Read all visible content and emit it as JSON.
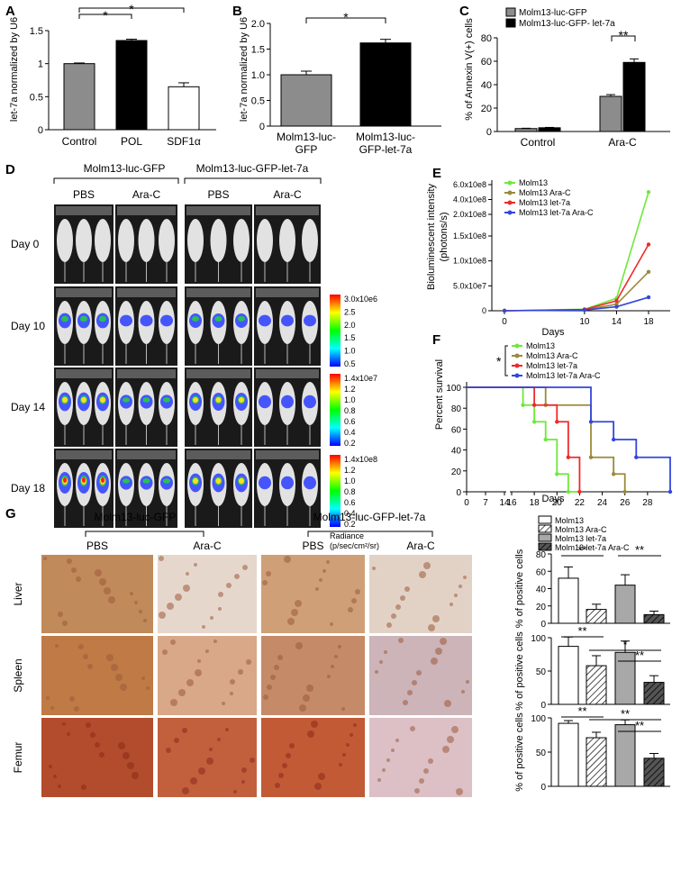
{
  "panels": {
    "A": {
      "label": "A",
      "ylabel": "let-7a normalized by U6",
      "yticks": [
        "0",
        "0.5",
        "1",
        "1.5"
      ],
      "chart_data": {
        "type": "bar",
        "categories": [
          "Control",
          "POL",
          "SDF1α"
        ],
        "values": [
          1.0,
          1.35,
          0.65
        ],
        "errors": [
          0.01,
          0.02,
          0.06
        ],
        "colors": [
          "#8c8c8c",
          "#000000",
          "#ffffff"
        ],
        "ylim": [
          0,
          1.5
        ],
        "significance": [
          "*",
          "*"
        ]
      }
    },
    "B": {
      "label": "B",
      "ylabel": "let-7a normalized by U6",
      "yticks": [
        "0",
        "0.5",
        "1.0",
        "1.5",
        "2.0"
      ],
      "xlabels": [
        [
          "Molm13-luc-",
          "GFP"
        ],
        [
          "Molm13-luc-",
          "GFP-let-7a"
        ]
      ],
      "chart_data": {
        "type": "bar",
        "categories": [
          "Molm13-luc-GFP",
          "Molm13-luc-GFP-let-7a"
        ],
        "values": [
          1.0,
          1.62
        ],
        "errors": [
          0.07,
          0.07
        ],
        "colors": [
          "#8c8c8c",
          "#000000"
        ],
        "ylim": [
          0,
          2.0
        ],
        "significance": [
          "*"
        ]
      }
    },
    "C": {
      "label": "C",
      "ylabel": "% of Annexin V(+) cells",
      "yticks": [
        "0",
        "20",
        "40",
        "60",
        "80"
      ],
      "legend": [
        "Molm13-luc-GFP",
        "Molm13-luc-GFP- let-7a"
      ],
      "chart_data": {
        "type": "bar",
        "categories": [
          "Control",
          "Ara-C"
        ],
        "series": [
          {
            "name": "Molm13-luc-GFP",
            "values": [
              2.5,
              30
            ],
            "errors": [
              0.3,
              1.5
            ],
            "color": "#8c8c8c"
          },
          {
            "name": "Molm13-luc-GFP- let-7a",
            "values": [
              3.2,
              59
            ],
            "errors": [
              0.3,
              3
            ],
            "color": "#000000"
          }
        ],
        "ylim": [
          0,
          80
        ],
        "significance": [
          "**"
        ]
      }
    },
    "D": {
      "label": "D",
      "group1": "Molm13-luc-GFP",
      "group2": "Molm13-luc-GFP-let-7a",
      "cols": [
        "PBS",
        "Ara-C",
        "PBS",
        "Ara-C"
      ],
      "days": [
        "Day 0",
        "Day 10",
        "Day 14",
        "Day 18"
      ],
      "scales": [
        {
          "top": "3.0x10e6",
          "ticks": [
            "2.5",
            "2.0",
            "1.5",
            "1.0",
            "0.5"
          ]
        },
        {
          "top": "1.4x10e7",
          "ticks": [
            "1.2",
            "1.0",
            "0.8",
            "0.6",
            "0.4",
            "0.2"
          ]
        },
        {
          "top": "1.4x10e8",
          "ticks": [
            "1.2",
            "1.0",
            "0.8",
            "0.6",
            "0.4",
            "0.2"
          ]
        }
      ],
      "radiance_label": "Radiance",
      "radiance_unit": "(p/sec/cm²/sr)"
    },
    "E": {
      "label": "E",
      "ylabel": "Bioluminescent intensity",
      "ylabel2": "(photons/s)",
      "xlabel": "Days",
      "yticks": [
        "0",
        "5.0x10e7",
        "1.0x10e8",
        "1.5x10e8",
        "2.0x10e8",
        "4.0x10e8",
        "6.0x10e8"
      ],
      "xticks": [
        "0",
        "10",
        "14",
        "18"
      ],
      "chart_data": {
        "type": "line",
        "x": [
          0,
          10,
          14,
          18
        ],
        "series": [
          {
            "name": "Molm13",
            "values": [
              0,
              3000000.0,
              25000000.0,
              500000000.0
            ],
            "color": "#6ee83a"
          },
          {
            "name": "Molm13 Ara-C",
            "values": [
              0,
              2000000.0,
              13000000.0,
              78000000.0
            ],
            "color": "#9a8a3a"
          },
          {
            "name": "Molm13 let-7a",
            "values": [
              0,
              2500000.0,
              20000000.0,
              133000000.0
            ],
            "color": "#ee2a2a"
          },
          {
            "name": "Molm13 let-7a Ara-C",
            "values": [
              0,
              1500000.0,
              8000000.0,
              27000000.0
            ],
            "color": "#3346dd"
          }
        ]
      }
    },
    "F": {
      "label": "F",
      "ylabel": "Percent survival",
      "xlabel": "Days",
      "xticks": [
        "0",
        "7",
        "14",
        "16",
        "18",
        "20",
        "22",
        "24",
        "26",
        "28"
      ],
      "yticks": [
        "0",
        "20",
        "40",
        "60",
        "80",
        "100"
      ],
      "significance": "*",
      "chart_data": {
        "type": "line",
        "series": [
          {
            "name": "Molm13",
            "color": "#6ee83a",
            "steps": [
              [
                0,
                100
              ],
              [
                17,
                100
              ],
              [
                17,
                83
              ],
              [
                18,
                83
              ],
              [
                18,
                67
              ],
              [
                19,
                67
              ],
              [
                19,
                50
              ],
              [
                20,
                50
              ],
              [
                20,
                17
              ],
              [
                21,
                17
              ],
              [
                21,
                0
              ],
              [
                22,
                0
              ]
            ]
          },
          {
            "name": "Molm13 Ara-C",
            "color": "#9a8a3a",
            "steps": [
              [
                0,
                100
              ],
              [
                19,
                100
              ],
              [
                19,
                83
              ],
              [
                23,
                83
              ],
              [
                23,
                33
              ],
              [
                25,
                33
              ],
              [
                25,
                17
              ],
              [
                26,
                17
              ],
              [
                26,
                0
              ]
            ]
          },
          {
            "name": "Molm13 let-7a",
            "color": "#ee2a2a",
            "steps": [
              [
                0,
                100
              ],
              [
                18,
                100
              ],
              [
                18,
                83
              ],
              [
                20,
                83
              ],
              [
                20,
                67
              ],
              [
                21,
                67
              ],
              [
                21,
                33
              ],
              [
                22,
                33
              ],
              [
                22,
                0
              ]
            ]
          },
          {
            "name": "Molm13 let-7a Ara-C",
            "color": "#3346dd",
            "steps": [
              [
                0,
                100
              ],
              [
                23,
                100
              ],
              [
                23,
                67
              ],
              [
                25,
                67
              ],
              [
                25,
                50
              ],
              [
                27,
                50
              ],
              [
                27,
                33
              ],
              [
                30,
                33
              ],
              [
                30,
                0
              ]
            ]
          }
        ]
      }
    },
    "G": {
      "label": "G",
      "group1": "Molm13-luc-GFP",
      "group2": "Molm13-luc-GFP-let-7a",
      "cols": [
        "PBS",
        "Ara-C",
        "PBS",
        "Ara-C"
      ],
      "rows": [
        "Liver",
        "Spleen",
        "Femur"
      ],
      "legend": [
        "Molm13",
        "Molm13 Ara-C",
        "Molm13 let-7a",
        "Molm13 let-7a Ara-C"
      ],
      "ylabel": "% of positive cells",
      "charts": [
        {
          "yticks": [
            "0",
            "20",
            "40",
            "60",
            "80"
          ],
          "ymax": 80,
          "values": [
            52,
            16,
            44,
            10
          ],
          "errors": [
            13,
            6,
            12,
            4
          ],
          "sig": [
            "**",
            "**"
          ]
        },
        {
          "yticks": [
            "0",
            "50",
            "100"
          ],
          "ymax": 100,
          "values": [
            87,
            58,
            78,
            33
          ],
          "errors": [
            14,
            15,
            17,
            10
          ],
          "sig": [
            "**",
            "*",
            "**"
          ]
        },
        {
          "yticks": [
            "0",
            "50",
            "100"
          ],
          "ymax": 100,
          "values": [
            92,
            71,
            90,
            41
          ],
          "errors": [
            4,
            8,
            7,
            7
          ],
          "sig": [
            "**",
            "**",
            "**"
          ]
        }
      ]
    }
  }
}
